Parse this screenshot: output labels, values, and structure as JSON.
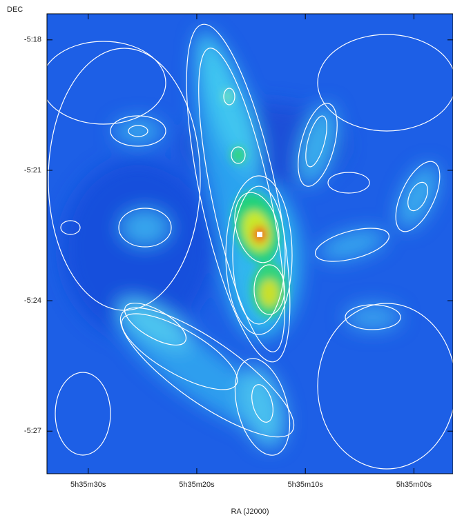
{
  "chart_data": {
    "type": "image",
    "xlabel": "RA (J2000)",
    "ylabel": "DEC",
    "xlim": [
      33.8,
      -3.6
    ],
    "xticks": [
      {
        "value": 30,
        "label": "5h35m30s"
      },
      {
        "value": 20,
        "label": "5h35m20s"
      },
      {
        "value": 10,
        "label": "5h35m10s"
      },
      {
        "value": 0,
        "label": "5h35m00s"
      }
    ],
    "ylim": [
      -27.98,
      -17.4
    ],
    "yticks": [
      {
        "value": -18,
        "label": "-5:18"
      },
      {
        "value": -21,
        "label": "-5:21"
      },
      {
        "value": -24,
        "label": "-5:24"
      },
      {
        "value": -27,
        "label": "-5:27"
      }
    ]
  }
}
